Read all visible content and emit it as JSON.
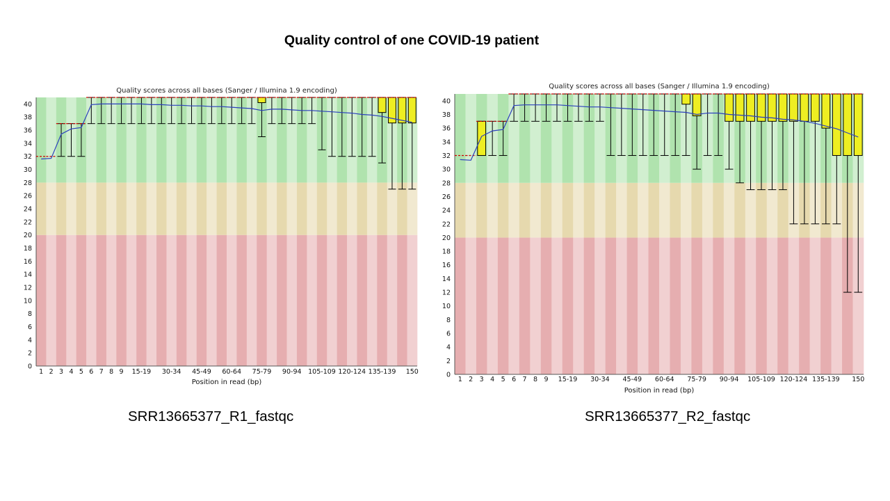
{
  "slide": {
    "title": "Quality control of one COVID-19 patient",
    "captions": [
      "SRR13665377_R1_fastqc",
      "SRR13665377_R2_fastqc"
    ]
  },
  "colors": {
    "green_zone": "#b0e3ae",
    "orange_zone": "#e6d9ae",
    "red_zone": "#e6aeb0",
    "box_fill": "#eeee22",
    "mean_line": "#2b3fbd",
    "median_mark": "#cc0000",
    "whisker": "#000000"
  },
  "chart_data": [
    {
      "type": "box",
      "title": "Quality scores across all bases (Sanger / Illumina 1.9 encoding)",
      "xlabel": "Position in read (bp)",
      "ylim": [
        0,
        41
      ],
      "yticks": [
        0,
        2,
        4,
        6,
        8,
        10,
        12,
        14,
        16,
        18,
        20,
        22,
        24,
        26,
        28,
        30,
        32,
        34,
        36,
        38,
        40
      ],
      "zones": [
        {
          "from": 0,
          "to": 20,
          "label": "poor"
        },
        {
          "from": 20,
          "to": 28,
          "label": "reasonable"
        },
        {
          "from": 28,
          "to": 41,
          "label": "good"
        }
      ],
      "categories": [
        "1",
        "2",
        "3",
        "4",
        "5",
        "6",
        "7",
        "8",
        "9",
        "10-14",
        "15-19",
        "20-24",
        "25-29",
        "30-34",
        "35-39",
        "40-44",
        "45-49",
        "50-54",
        "55-59",
        "60-64",
        "65-69",
        "70-74",
        "75-79",
        "80-84",
        "85-89",
        "90-94",
        "95-99",
        "100-104",
        "105-109",
        "110-114",
        "115-119",
        "120-124",
        "125-129",
        "130-134",
        "135-139",
        "140-144",
        "145-149",
        "150"
      ],
      "xtick_labels": [
        "1",
        "2",
        "3",
        "4",
        "5",
        "6",
        "7",
        "8",
        "9",
        "15-19",
        "30-34",
        "45-49",
        "60-64",
        "75-79",
        "90-94",
        "105-109",
        "120-124",
        "135-139",
        "150"
      ],
      "mean": [
        31.6,
        31.7,
        35.4,
        36.2,
        36.4,
        39.9,
        40.0,
        40.0,
        40.0,
        40.0,
        40.0,
        39.9,
        39.9,
        39.8,
        39.8,
        39.7,
        39.7,
        39.6,
        39.6,
        39.5,
        39.4,
        39.3,
        39.0,
        39.2,
        39.2,
        39.1,
        39.0,
        39.0,
        38.9,
        38.8,
        38.7,
        38.6,
        38.4,
        38.3,
        38.1,
        37.8,
        37.5,
        37.2
      ],
      "median": [
        32,
        32,
        37,
        37,
        37,
        41,
        41,
        41,
        41,
        41,
        41,
        41,
        41,
        41,
        41,
        41,
        41,
        41,
        41,
        41,
        41,
        41,
        41,
        41,
        41,
        41,
        41,
        41,
        41,
        41,
        41,
        41,
        41,
        41,
        41,
        41,
        41,
        41
      ],
      "q1": [
        32,
        32,
        37,
        37,
        37,
        41,
        41,
        41,
        41,
        41,
        41,
        41,
        41,
        41,
        41,
        41,
        41,
        41,
        41,
        41,
        41,
        41,
        40.2,
        41,
        41,
        41,
        41,
        41,
        41,
        41,
        41,
        41,
        41,
        41,
        38.7,
        37.1,
        37.1,
        37.1
      ],
      "q3": [
        32,
        32,
        37,
        37,
        37,
        41,
        41,
        41,
        41,
        41,
        41,
        41,
        41,
        41,
        41,
        41,
        41,
        41,
        41,
        41,
        41,
        41,
        41,
        41,
        41,
        41,
        41,
        41,
        41,
        41,
        41,
        41,
        41,
        41,
        41,
        41,
        41,
        41
      ],
      "lower": [
        32,
        32,
        32,
        32,
        32,
        37,
        37,
        37,
        37,
        37,
        37,
        37,
        37,
        37,
        37,
        37,
        37,
        37,
        37,
        37,
        37,
        37,
        35,
        37,
        37,
        37,
        37,
        37,
        33,
        32,
        32,
        32,
        32,
        32,
        31,
        27,
        27,
        27
      ],
      "upper": [
        32,
        32,
        37,
        37,
        37,
        41,
        41,
        41,
        41,
        41,
        41,
        41,
        41,
        41,
        41,
        41,
        41,
        41,
        41,
        41,
        41,
        41,
        41,
        41,
        41,
        41,
        41,
        41,
        41,
        41,
        41,
        41,
        41,
        41,
        41,
        41,
        41,
        41
      ]
    },
    {
      "type": "box",
      "title": "Quality scores across all bases (Sanger / Illumina 1.9 encoding)",
      "xlabel": "Position in read (bp)",
      "ylim": [
        0,
        41
      ],
      "yticks": [
        0,
        2,
        4,
        6,
        8,
        10,
        12,
        14,
        16,
        18,
        20,
        22,
        24,
        26,
        28,
        30,
        32,
        34,
        36,
        38,
        40
      ],
      "zones": [
        {
          "from": 0,
          "to": 20,
          "label": "poor"
        },
        {
          "from": 20,
          "to": 28,
          "label": "reasonable"
        },
        {
          "from": 28,
          "to": 41,
          "label": "good"
        }
      ],
      "categories": [
        "1",
        "2",
        "3",
        "4",
        "5",
        "6",
        "7",
        "8",
        "9",
        "10-14",
        "15-19",
        "20-24",
        "25-29",
        "30-34",
        "35-39",
        "40-44",
        "45-49",
        "50-54",
        "55-59",
        "60-64",
        "65-69",
        "70-74",
        "75-79",
        "80-84",
        "85-89",
        "90-94",
        "95-99",
        "100-104",
        "105-109",
        "110-114",
        "115-119",
        "120-124",
        "125-129",
        "130-134",
        "135-139",
        "140-144",
        "145-149",
        "150"
      ],
      "xtick_labels": [
        "1",
        "2",
        "3",
        "4",
        "5",
        "6",
        "7",
        "8",
        "9",
        "15-19",
        "30-34",
        "45-49",
        "60-64",
        "75-79",
        "90-94",
        "105-109",
        "120-124",
        "135-139",
        "150"
      ],
      "mean": [
        31.4,
        31.3,
        34.8,
        35.6,
        35.8,
        39.3,
        39.4,
        39.4,
        39.4,
        39.4,
        39.3,
        39.2,
        39.1,
        39.1,
        39.0,
        38.9,
        38.8,
        38.7,
        38.6,
        38.5,
        38.4,
        38.3,
        38.0,
        38.2,
        38.2,
        38.0,
        37.9,
        37.8,
        37.6,
        37.5,
        37.3,
        37.2,
        37.0,
        36.7,
        36.3,
        35.9,
        35.3,
        34.7
      ],
      "median": [
        32,
        32,
        37,
        37,
        37,
        41,
        41,
        41,
        41,
        41,
        41,
        41,
        41,
        41,
        41,
        41,
        41,
        41,
        41,
        41,
        41,
        41,
        41,
        41,
        41,
        41,
        41,
        41,
        41,
        41,
        41,
        41,
        41,
        41,
        41,
        41,
        41,
        41
      ],
      "q1": [
        32,
        32,
        32,
        37,
        37,
        41,
        41,
        41,
        41,
        41,
        41,
        41,
        41,
        41,
        41,
        41,
        41,
        41,
        41,
        41,
        41,
        39.5,
        37.8,
        41,
        41,
        37,
        37,
        37,
        37,
        37,
        37,
        37,
        37,
        37,
        36,
        32,
        32,
        32
      ],
      "q3": [
        32,
        32,
        37,
        37,
        37,
        41,
        41,
        41,
        41,
        41,
        41,
        41,
        41,
        41,
        41,
        41,
        41,
        41,
        41,
        41,
        41,
        41,
        41,
        41,
        41,
        41,
        41,
        41,
        41,
        41,
        41,
        41,
        41,
        41,
        41,
        41,
        41,
        41
      ],
      "lower": [
        32,
        32,
        32,
        32,
        32,
        37,
        37,
        37,
        37,
        37,
        37,
        37,
        37,
        37,
        32,
        32,
        32,
        32,
        32,
        32,
        32,
        32,
        30,
        32,
        32,
        30,
        28,
        27,
        27,
        27,
        27,
        22,
        22,
        22,
        22,
        22,
        12,
        12
      ],
      "upper": [
        32,
        32,
        37,
        37,
        37,
        41,
        41,
        41,
        41,
        41,
        41,
        41,
        41,
        41,
        41,
        41,
        41,
        41,
        41,
        41,
        41,
        41,
        41,
        41,
        41,
        41,
        41,
        41,
        41,
        41,
        41,
        41,
        41,
        41,
        41,
        41,
        41,
        41
      ]
    }
  ]
}
